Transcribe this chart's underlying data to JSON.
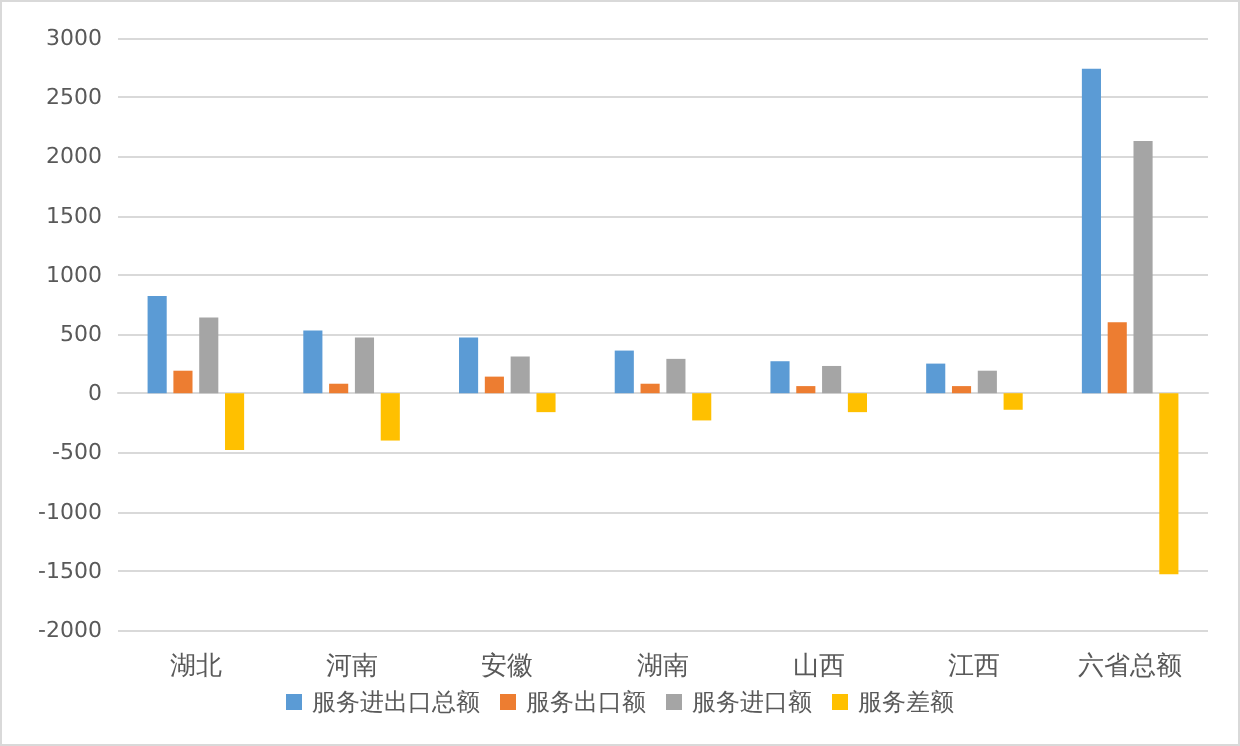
{
  "chart_data": {
    "type": "bar",
    "categories": [
      "湖北",
      "河南",
      "安徽",
      "湖南",
      "山西",
      "江西",
      "六省总额"
    ],
    "series": [
      {
        "name": "服务进出口总额",
        "color": "#5b9bd5",
        "values": [
          820,
          530,
          470,
          360,
          270,
          250,
          2740
        ]
      },
      {
        "name": "服务出口额",
        "color": "#ed7d31",
        "values": [
          190,
          80,
          140,
          80,
          60,
          60,
          600
        ]
      },
      {
        "name": "服务进口额",
        "color": "#a5a5a5",
        "values": [
          640,
          470,
          310,
          290,
          230,
          190,
          2130
        ]
      },
      {
        "name": "服务差额",
        "color": "#ffc000",
        "values": [
          -480,
          -400,
          -160,
          -230,
          -160,
          -140,
          -1530
        ]
      }
    ],
    "ylim": [
      -2000,
      3000
    ],
    "yticks": [
      -2000,
      -1500,
      -1000,
      -500,
      0,
      500,
      1000,
      1500,
      2000,
      2500,
      3000
    ],
    "grid": "y",
    "legend": "bottom"
  }
}
